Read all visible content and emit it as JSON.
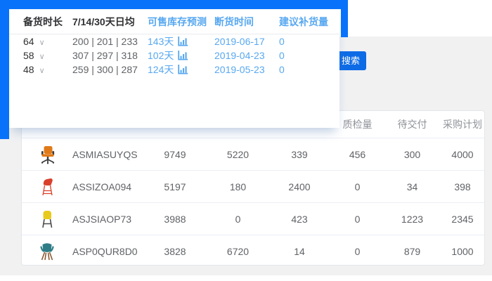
{
  "colors": {
    "highlight_blue": "#0972fa",
    "link_blue": "#58a8f0",
    "button_blue": "#0d6be6",
    "panel_gray": "#f1f1f2",
    "chair_orange": "#e07a18",
    "chair_red": "#d8402c",
    "chair_yellow": "#e8c91d",
    "chair_teal": "#2e7d86"
  },
  "toolbar": {
    "search_label": "搜索"
  },
  "popup": {
    "columns": {
      "duration": "备货时长",
      "daily_avg": "7/14/30天日均",
      "forecast": "可售库存预测",
      "stockout": "断货时间",
      "suggest": "建议补货量"
    },
    "rows": [
      {
        "duration": "64",
        "avg": "200 | 201 | 233",
        "forecast": "143天",
        "stockout": "2019-06-17",
        "suggest": "0"
      },
      {
        "duration": "58",
        "avg": "307 | 297 | 318",
        "forecast": "102天",
        "stockout": "2019-04-23",
        "suggest": "0"
      },
      {
        "duration": "48",
        "avg": "259 | 300 | 287",
        "forecast": "124天",
        "stockout": "2019-05-23",
        "suggest": "0"
      }
    ]
  },
  "table": {
    "headers": [
      "质检量",
      "待交付",
      "采购计划"
    ],
    "rows": [
      {
        "sku": "ASMIASUYQS",
        "c1": "9749",
        "c2": "5220",
        "c3": "339",
        "c4": "456",
        "c5": "300",
        "c6": "4000",
        "icon": {
          "variant": "office-chair",
          "shell": "#e07a18",
          "frame": "#3a3a3a"
        }
      },
      {
        "sku": "ASSIZOA094",
        "c1": "5197",
        "c2": "180",
        "c3": "2400",
        "c4": "0",
        "c5": "34",
        "c6": "398",
        "icon": {
          "variant": "stool-chair",
          "shell": "#d8402c",
          "frame": "#d8402c"
        }
      },
      {
        "sku": "ASJSIAOP73",
        "c1": "3988",
        "c2": "0",
        "c3": "423",
        "c4": "0",
        "c5": "1223",
        "c6": "2345",
        "icon": {
          "variant": "high-chair",
          "shell": "#e8c91d",
          "frame": "#4a4a4a"
        }
      },
      {
        "sku": "ASP0QUR8D0",
        "c1": "3828",
        "c2": "6720",
        "c3": "14",
        "c4": "0",
        "c5": "879",
        "c6": "1000",
        "icon": {
          "variant": "arm-chair",
          "shell": "#2e7d86",
          "frame": "#8a5a33"
        }
      }
    ]
  }
}
